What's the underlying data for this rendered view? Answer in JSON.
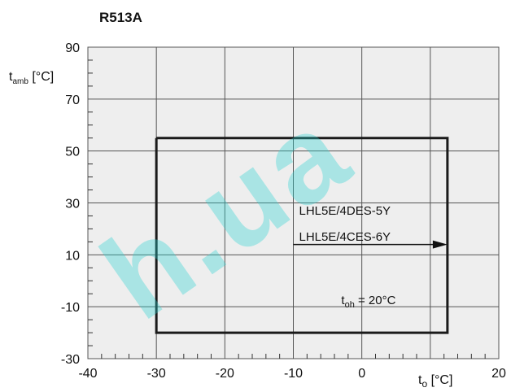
{
  "title": "R513A",
  "watermark": "h.ua",
  "colors": {
    "plot_bg": "#eeeeee",
    "grid": "#555555",
    "envelope": "#1a1a1a",
    "watermark": "#2ad4d2"
  },
  "chart_data": {
    "type": "line",
    "title": "R513A",
    "xlabel": "t₀ [°C]",
    "xlabel_main": "t",
    "xlabel_sub": "o",
    "xlabel_unit": " [°C]",
    "ylabel": "t_amb [°C]",
    "ylabel_main": "t",
    "ylabel_sub": "amb",
    "ylabel_unit": " [°C]",
    "xlim": [
      -40,
      20
    ],
    "ylim": [
      -30,
      90
    ],
    "x_ticks": [
      -40,
      -30,
      -20,
      -10,
      0,
      20
    ],
    "y_ticks": [
      90,
      70,
      50,
      30,
      10,
      -10,
      -30
    ],
    "grid": true,
    "series": [
      {
        "x": [
          -30,
          12.5,
          12.5,
          -30,
          -30
        ],
        "y": [
          55,
          55,
          -20,
          -20,
          55
        ]
      }
    ],
    "annotations": {
      "model_1": "LHL5E/4DES-5Y",
      "model_2": "LHL5E/4CES-6Y",
      "arrow": {
        "x_from": -10,
        "x_to": 12.5,
        "y": 14
      },
      "toh_main": "t",
      "toh_sub": "oh",
      "toh_rest": " = 20°C"
    }
  }
}
